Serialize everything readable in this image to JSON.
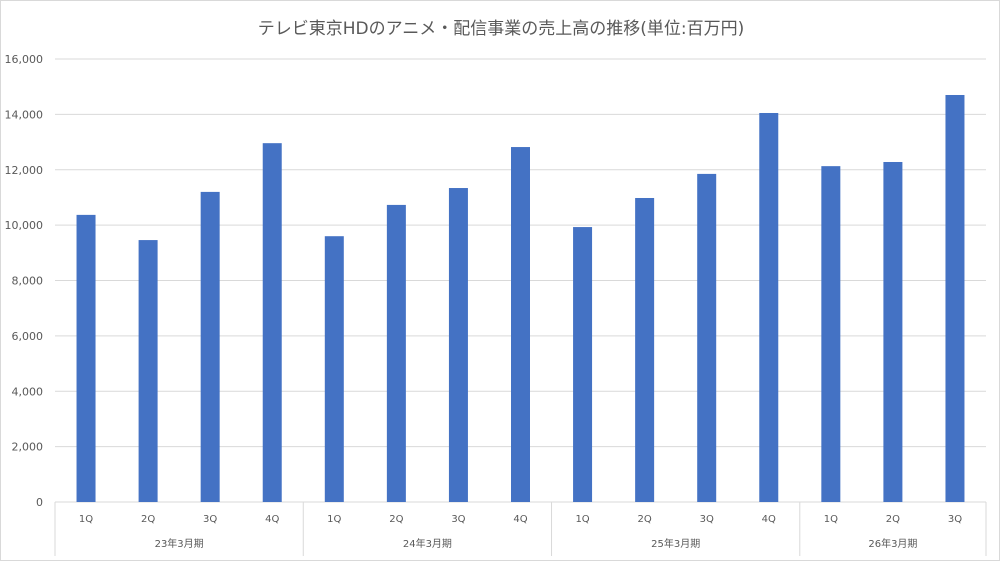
{
  "chart_data": {
    "type": "bar",
    "title": "テレビ東京HDのアニメ・配信事業の売上高の推移(単位:百万円)",
    "categories": [
      "1Q",
      "2Q",
      "3Q",
      "4Q",
      "1Q",
      "2Q",
      "3Q",
      "4Q",
      "1Q",
      "2Q",
      "3Q",
      "4Q",
      "1Q",
      "2Q",
      "3Q"
    ],
    "groups": [
      {
        "label": "23年3月期",
        "count": 4
      },
      {
        "label": "24年3月期",
        "count": 4
      },
      {
        "label": "25年3月期",
        "count": 4
      },
      {
        "label": "26年3月期",
        "count": 3
      }
    ],
    "values": [
      10370,
      9460,
      11200,
      12960,
      9600,
      10730,
      11340,
      12820,
      9930,
      10980,
      11850,
      14050,
      12130,
      12280,
      14700
    ],
    "ylim": [
      0,
      16000
    ],
    "yticks": [
      "0",
      "2,000",
      "4,000",
      "6,000",
      "8,000",
      "10,000",
      "12,000",
      "14,000",
      "16,000"
    ],
    "grid": true,
    "bar_color": "#4472c4"
  }
}
